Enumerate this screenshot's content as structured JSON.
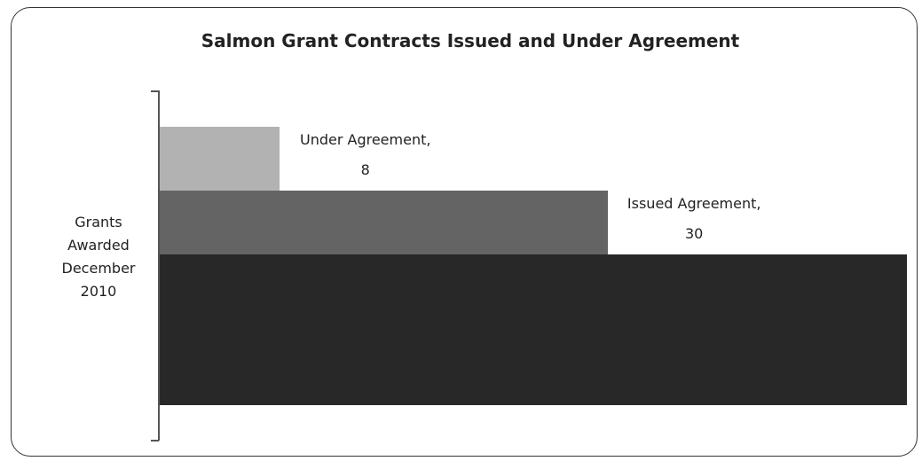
{
  "chart_data": {
    "type": "bar3d",
    "title": "Salmon Grant Contracts Issued and Under Agreement",
    "categories": [
      "Grants Awarded December 2010"
    ],
    "series": [
      {
        "name": "Under Agreement",
        "color": "#b2b2b2",
        "values": [
          8
        ],
        "value_labels": [
          "Under Agreement, 8"
        ]
      },
      {
        "name": "Issued Agreement",
        "color": "#646464",
        "values": [
          30
        ],
        "value_labels": [
          "Issued Agreement, 30"
        ]
      },
      {
        "color": "#282828",
        "values": [
          50
        ]
      }
    ],
    "xlim": [
      0,
      50
    ]
  }
}
